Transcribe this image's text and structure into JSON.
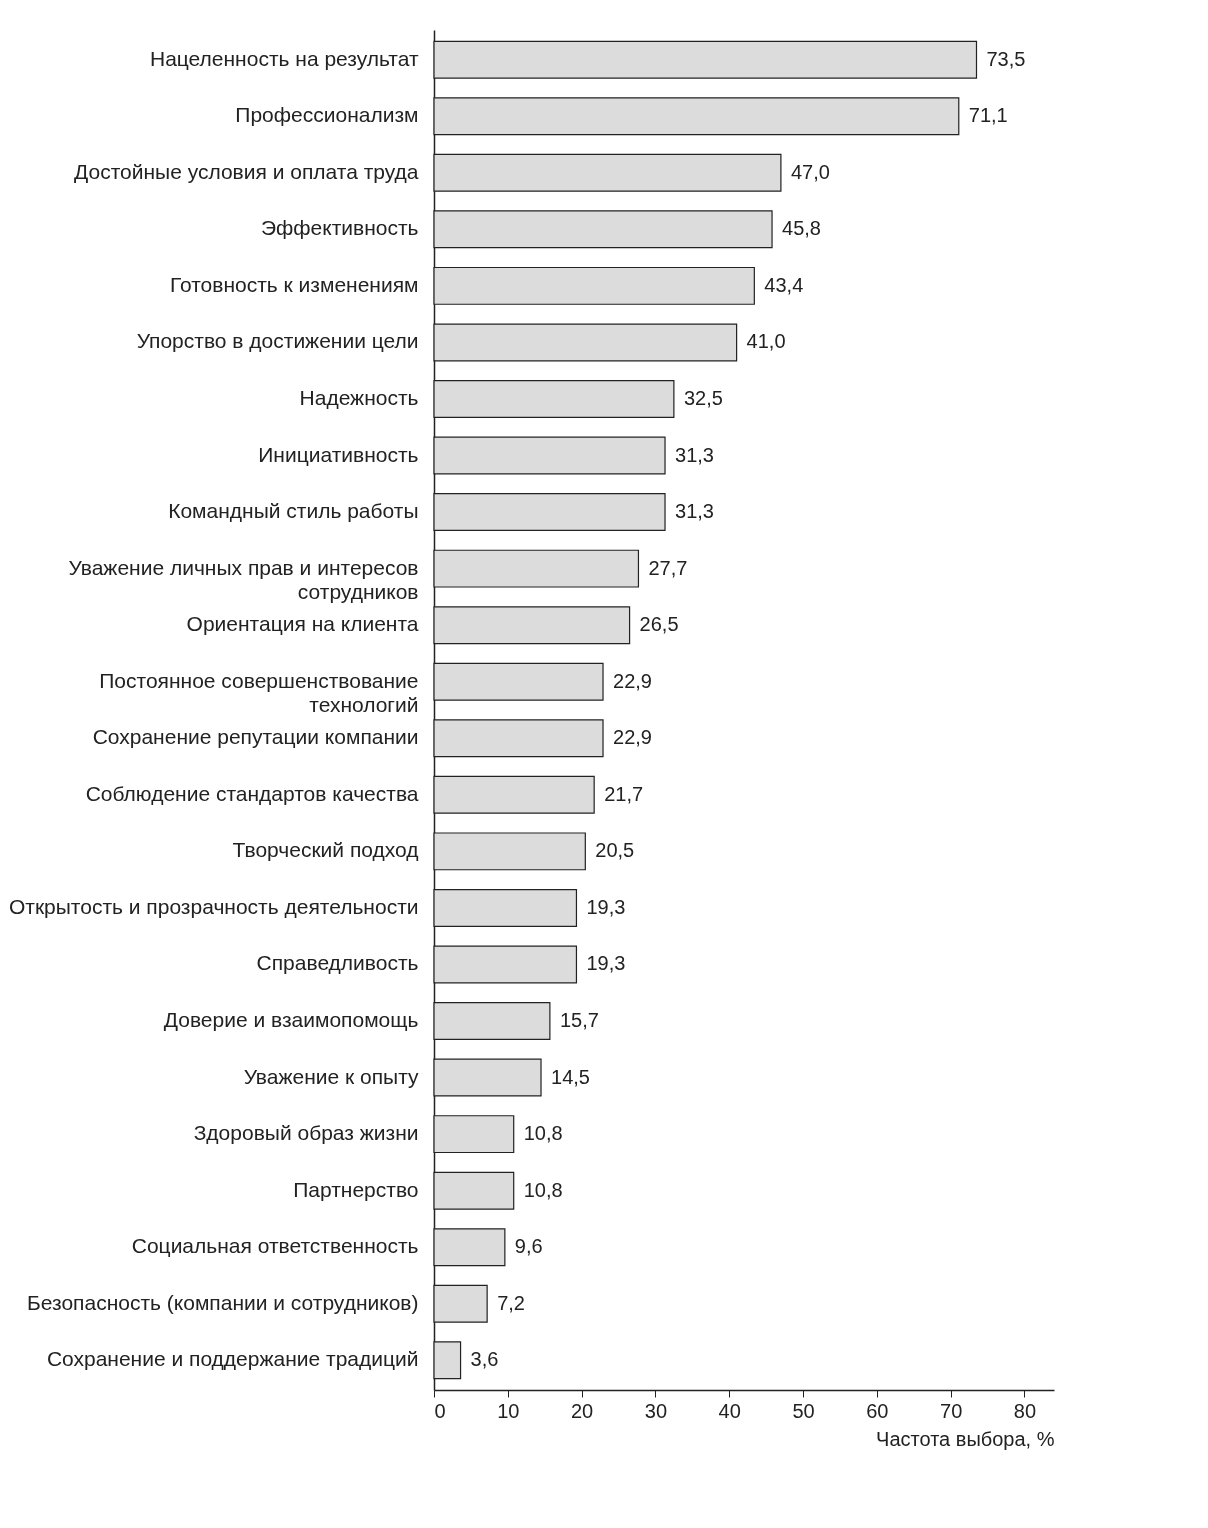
{
  "chart_data": {
    "type": "bar",
    "orientation": "horizontal",
    "xlabel": "Частота выбора, %",
    "categories": [
      "Нацеленность на результат",
      "Профессионализм",
      "Достойные условия и оплата труда",
      "Эффективность",
      "Готовность к изменениям",
      "Упорство в достижении цели",
      "Надежность",
      "Инициативность",
      "Командный стиль работы",
      "Уважение личных прав и интересов сотрудников",
      "Ориентация на клиента",
      "Постоянное совершенствование технологий",
      "Сохранение репутации компании",
      "Соблюдение стандартов качества",
      "Творческий подход",
      "Открытость и прозрачность деятельности",
      "Справедливость",
      "Доверие и взаимопомощь",
      "Уважение к опыту",
      "Здоровый образ жизни",
      "Партнерство",
      "Социальная ответственность",
      "Безопасность (компании и сотрудников)",
      "Сохранение и поддержание традиций"
    ],
    "values": [
      73.5,
      71.1,
      47.0,
      45.8,
      43.4,
      41.0,
      32.5,
      31.3,
      31.3,
      27.7,
      26.5,
      22.9,
      22.9,
      21.7,
      20.5,
      19.3,
      19.3,
      15.7,
      14.5,
      10.8,
      10.8,
      9.6,
      7.2,
      3.6
    ],
    "value_labels": [
      "73,5",
      "71,1",
      "47,0",
      "45,8",
      "43,4",
      "41,0",
      "32,5",
      "31,3",
      "31,3",
      "27,7",
      "26,5",
      "22,9",
      "22,9",
      "21,7",
      "20,5",
      "19,3",
      "19,3",
      "15,7",
      "14,5",
      "10,8",
      "10,8",
      "9,6",
      "7,2",
      "3,6"
    ],
    "color": "#dcdcdc",
    "xlim": [
      0,
      84
    ],
    "xticks": [
      0,
      10,
      20,
      30,
      40,
      50,
      60,
      70,
      80
    ],
    "grid": false
  }
}
